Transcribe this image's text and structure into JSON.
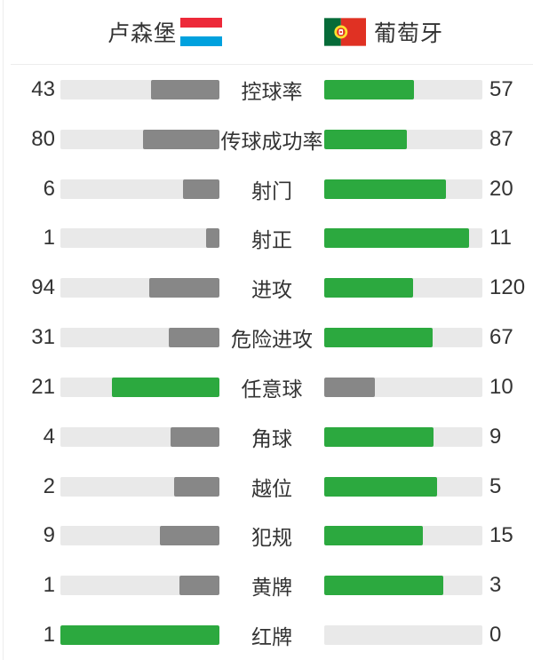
{
  "header": {
    "home": {
      "name": "卢森堡",
      "flag": "luxembourg-flag"
    },
    "away": {
      "name": "葡萄牙",
      "flag": "portugal-flag"
    }
  },
  "stats": [
    {
      "label": "控球率",
      "home": 43,
      "away": 57
    },
    {
      "label": "传球成功率",
      "home": 80,
      "away": 87
    },
    {
      "label": "射门",
      "home": 6,
      "away": 20
    },
    {
      "label": "射正",
      "home": 1,
      "away": 11
    },
    {
      "label": "进攻",
      "home": 94,
      "away": 120
    },
    {
      "label": "危险进攻",
      "home": 31,
      "away": 67
    },
    {
      "label": "任意球",
      "home": 21,
      "away": 10
    },
    {
      "label": "角球",
      "home": 4,
      "away": 9
    },
    {
      "label": "越位",
      "home": 2,
      "away": 5
    },
    {
      "label": "犯规",
      "home": 9,
      "away": 15
    },
    {
      "label": "黄牌",
      "home": 1,
      "away": 3
    },
    {
      "label": "红牌",
      "home": 1,
      "away": 0
    }
  ],
  "colors": {
    "win_green": "#2ca93f",
    "lose_gray": "#878787",
    "track": "#e9e9e9",
    "divider": "#ededed",
    "text": "#333333",
    "luxembourg_red": "#ed2939",
    "luxembourg_blue": "#00a1de",
    "portugal_green": "#066b38",
    "portugal_red": "#e03123",
    "portugal_emblem_yellow": "#ffe12e"
  },
  "chart_data": {
    "type": "bar",
    "orientation": "horizontal-paired",
    "categories": [
      "控球率",
      "传球成功率",
      "射门",
      "射正",
      "进攻",
      "危险进攻",
      "任意球",
      "角球",
      "越位",
      "犯规",
      "黄牌",
      "红牌"
    ],
    "series": [
      {
        "name": "卢森堡",
        "values": [
          43,
          80,
          6,
          1,
          94,
          31,
          21,
          4,
          2,
          9,
          1,
          1
        ]
      },
      {
        "name": "葡萄牙",
        "values": [
          57,
          87,
          20,
          11,
          120,
          67,
          10,
          9,
          5,
          15,
          3,
          0
        ]
      }
    ],
    "note": "bar length = value / (home+away); higher value rendered green, lower gray"
  }
}
